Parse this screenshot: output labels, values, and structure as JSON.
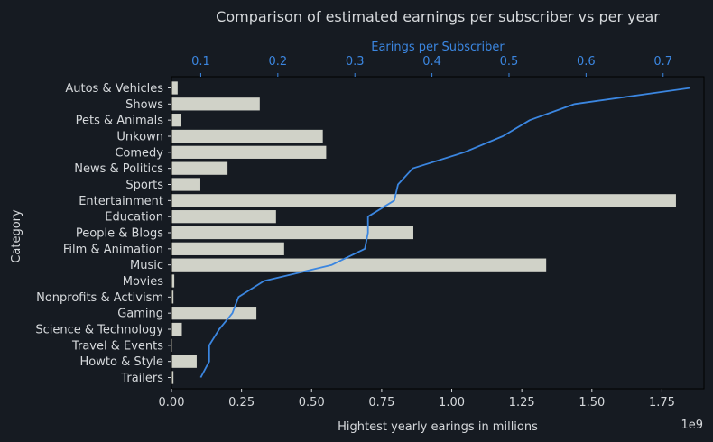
{
  "chart_data": {
    "type": "bar",
    "orientation": "horizontal",
    "title": "Comparison of estimated earnings per subscriber vs per year",
    "ylabel": "Category",
    "categories": [
      "Autos & Vehicles",
      "Shows",
      "Pets & Animals",
      "Unkown",
      "Comedy",
      "News & Politics",
      "Sports",
      "Entertainment",
      "Education",
      "People & Blogs",
      "Film & Animation",
      "Music",
      "Movies",
      "Nonprofits & Activism",
      "Gaming",
      "Science & Technology",
      "Travel & Events",
      "Howto & Style",
      "Trailers"
    ],
    "bar_axis": {
      "label": "Hightest yearly earings in millions",
      "offset_text": "1e9",
      "range": [
        0,
        1.9
      ],
      "ticks": [
        0.0,
        0.25,
        0.5,
        0.75,
        1.0,
        1.25,
        1.5,
        1.75
      ],
      "tick_labels": [
        "0.00",
        "0.25",
        "0.50",
        "0.75",
        "1.00",
        "1.25",
        "1.50",
        "1.75"
      ]
    },
    "line_axis": {
      "label": "Earings per Subscriber",
      "range": [
        0.062,
        0.753
      ],
      "ticks": [
        0.1,
        0.2,
        0.3,
        0.4,
        0.5,
        0.6,
        0.7
      ],
      "tick_labels": [
        "0.1",
        "0.2",
        "0.3",
        "0.4",
        "0.5",
        "0.6",
        "0.7"
      ]
    },
    "series": [
      {
        "type": "bar",
        "axis": "bottom",
        "color": "#d0d2c8",
        "values": [
          0.022,
          0.315,
          0.035,
          0.54,
          0.552,
          0.2,
          0.103,
          1.8,
          0.373,
          0.863,
          0.402,
          1.337,
          0.01,
          0.007,
          0.303,
          0.037,
          0.003,
          0.09,
          0.007
        ]
      },
      {
        "type": "line",
        "axis": "top",
        "color": "#3b86e0",
        "values": [
          0.735,
          0.585,
          0.527,
          0.492,
          0.442,
          0.375,
          0.356,
          0.351,
          0.317,
          0.317,
          0.313,
          0.27,
          0.182,
          0.149,
          0.141,
          0.124,
          0.111,
          0.111,
          0.1
        ]
      }
    ]
  }
}
